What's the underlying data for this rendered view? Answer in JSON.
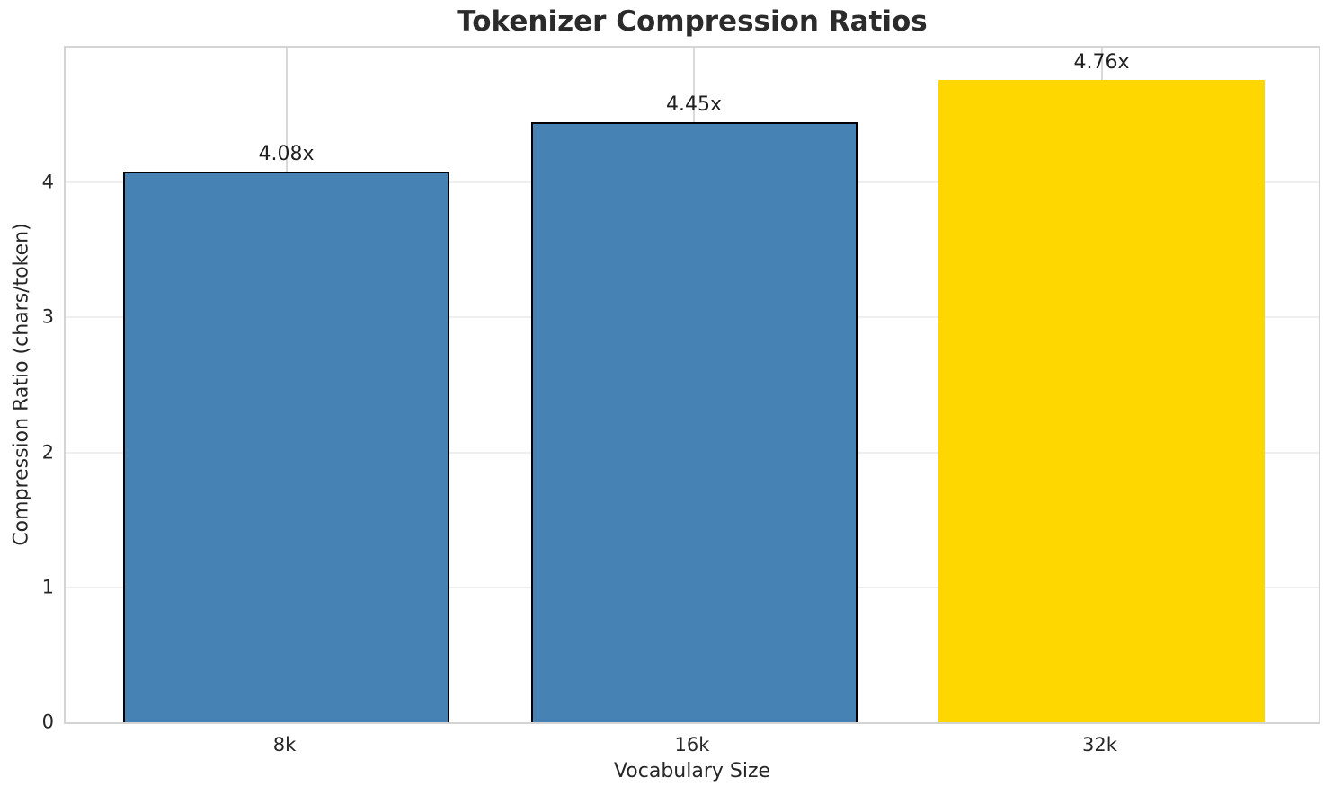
{
  "chart_data": {
    "type": "bar",
    "title": "Tokenizer Compression Ratios",
    "xlabel": "Vocabulary Size",
    "ylabel": "Compression Ratio (chars/token)",
    "categories": [
      "8k",
      "16k",
      "32k"
    ],
    "values": [
      4.08,
      4.45,
      4.76
    ],
    "bars": [
      {
        "category": "8k",
        "value": 4.08,
        "label": "4.08x",
        "color": "#4682b4",
        "edge_color": "#000000"
      },
      {
        "category": "16k",
        "value": 4.45,
        "label": "4.45x",
        "color": "#4682b4",
        "edge_color": "#000000"
      },
      {
        "category": "32k",
        "value": 4.76,
        "label": "4.76x",
        "color": "#ffd700",
        "edge_color": "none"
      }
    ],
    "ylim": [
      0,
      5
    ],
    "yticks": [
      0,
      1,
      2,
      3,
      4
    ],
    "grid": "on",
    "legend_position": "none",
    "colors": {
      "default_bar": "#4682b4",
      "highlight_bar": "#ffd700",
      "text": "#262626",
      "title_text": "#2b2b2b",
      "horizontal_grid": "#efefef",
      "vertical_grid": "#d9d9d9",
      "spine": "#d4d4d4",
      "bar_edge": "#000000",
      "background": "#ffffff"
    }
  }
}
